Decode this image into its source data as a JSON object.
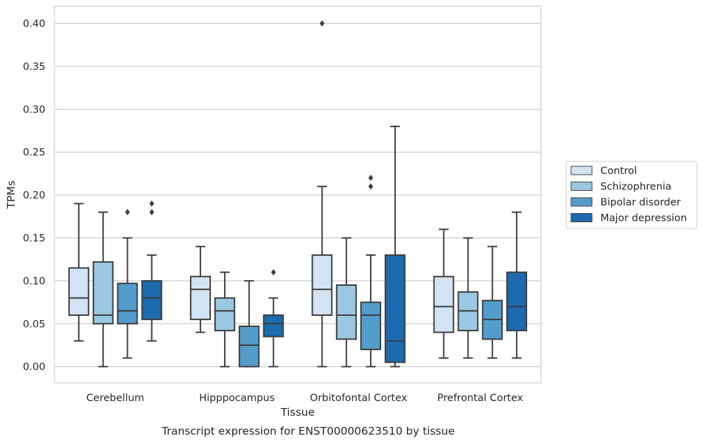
{
  "chart_data": {
    "type": "boxplot",
    "caption": "Transcript expression for ENST00000623510 by tissue",
    "xlabel": "Tissue",
    "ylabel": "TPMs",
    "ylim": [
      -0.019,
      0.42
    ],
    "yticks": [
      "0.00",
      "0.05",
      "0.10",
      "0.15",
      "0.20",
      "0.25",
      "0.30",
      "0.35",
      "0.40"
    ],
    "ytick_values": [
      0.0,
      0.05,
      0.1,
      0.15,
      0.2,
      0.25,
      0.3,
      0.35,
      0.4
    ],
    "grid": "horizontal",
    "legend_position": "right",
    "categories": [
      "Cerebellum",
      "Hipppocampus",
      "Orbitofontal Cortex",
      "Prefrontal Cortex"
    ],
    "series": [
      {
        "name": "Control",
        "color": "#d2e3f3",
        "boxes": [
          {
            "whislo": 0.03,
            "q1": 0.06,
            "med": 0.08,
            "q3": 0.115,
            "whishi": 0.19,
            "fliers": []
          },
          {
            "whislo": 0.04,
            "q1": 0.055,
            "med": 0.09,
            "q3": 0.105,
            "whishi": 0.14,
            "fliers": []
          },
          {
            "whislo": 0.0,
            "q1": 0.06,
            "med": 0.09,
            "q3": 0.13,
            "whishi": 0.21,
            "fliers": [
              0.4
            ]
          },
          {
            "whislo": 0.01,
            "q1": 0.04,
            "med": 0.07,
            "q3": 0.105,
            "whishi": 0.16,
            "fliers": []
          }
        ]
      },
      {
        "name": "Schizophrenia",
        "color": "#9ac8e0",
        "boxes": [
          {
            "whislo": 0.0,
            "q1": 0.05,
            "med": 0.06,
            "q3": 0.122,
            "whishi": 0.18,
            "fliers": []
          },
          {
            "whislo": 0.0,
            "q1": 0.042,
            "med": 0.065,
            "q3": 0.08,
            "whishi": 0.11,
            "fliers": []
          },
          {
            "whislo": 0.0,
            "q1": 0.032,
            "med": 0.06,
            "q3": 0.095,
            "whishi": 0.15,
            "fliers": []
          },
          {
            "whislo": 0.01,
            "q1": 0.042,
            "med": 0.065,
            "q3": 0.087,
            "whishi": 0.15,
            "fliers": []
          }
        ]
      },
      {
        "name": "Bipolar disorder",
        "color": "#529dcc",
        "boxes": [
          {
            "whislo": 0.01,
            "q1": 0.05,
            "med": 0.065,
            "q3": 0.097,
            "whishi": 0.15,
            "fliers": [
              0.18
            ]
          },
          {
            "whislo": 0.0,
            "q1": 0.0,
            "med": 0.025,
            "q3": 0.047,
            "whishi": 0.1,
            "fliers": []
          },
          {
            "whislo": 0.0,
            "q1": 0.02,
            "med": 0.06,
            "q3": 0.075,
            "whishi": 0.13,
            "fliers": [
              0.21,
              0.22
            ]
          },
          {
            "whislo": 0.01,
            "q1": 0.032,
            "med": 0.055,
            "q3": 0.077,
            "whishi": 0.14,
            "fliers": []
          }
        ]
      },
      {
        "name": "Major depression",
        "color": "#1c6aaf",
        "boxes": [
          {
            "whislo": 0.03,
            "q1": 0.055,
            "med": 0.08,
            "q3": 0.1,
            "whishi": 0.13,
            "fliers": [
              0.18,
              0.19
            ]
          },
          {
            "whislo": 0.0,
            "q1": 0.035,
            "med": 0.05,
            "q3": 0.06,
            "whishi": 0.08,
            "fliers": [
              0.11
            ]
          },
          {
            "whislo": 0.0,
            "q1": 0.005,
            "med": 0.03,
            "q3": 0.13,
            "whishi": 0.28,
            "fliers": []
          },
          {
            "whislo": 0.01,
            "q1": 0.042,
            "med": 0.07,
            "q3": 0.11,
            "whishi": 0.18,
            "fliers": []
          }
        ]
      }
    ]
  }
}
